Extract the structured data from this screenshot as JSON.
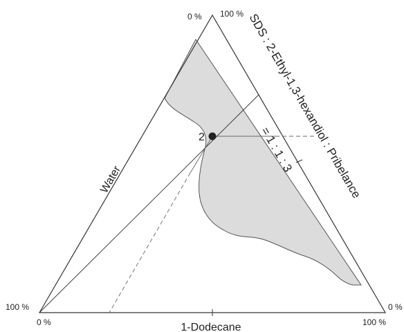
{
  "diagram": {
    "axes": {
      "left": "Water",
      "bottom": "1-Dodecane",
      "right": "SDS : 2-Ethyl-1,3-hexandiol : Pribelance",
      "right_ratio": "= 1 : 1 : 3"
    },
    "corner_labels": {
      "top_left": "0 %",
      "top_right": "100 %",
      "left_vertex": "100 %",
      "bottom_left": "0 %",
      "bottom_right": "100 %",
      "right_vertex": "0 %"
    },
    "point": {
      "label": "2"
    },
    "colors": {
      "region_fill": "#dcdcdc",
      "outline": "#333333",
      "point": "#222222"
    }
  }
}
